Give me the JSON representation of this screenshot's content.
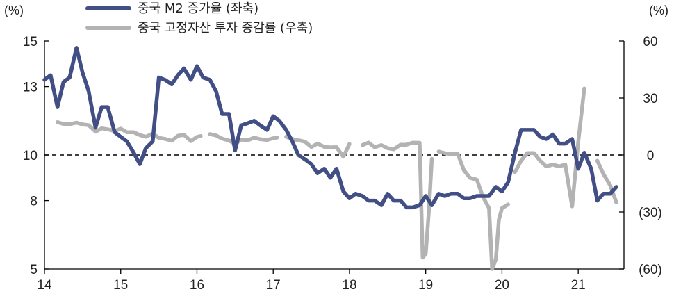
{
  "chart_data": {
    "type": "line",
    "title": "",
    "left_axis": {
      "unit_label": "(%)",
      "ylim": [
        5,
        15
      ],
      "ticks": [
        5,
        8,
        10,
        13,
        15
      ]
    },
    "right_axis": {
      "unit_label": "(%)",
      "ylim": [
        -60,
        60
      ],
      "ticks": [
        -60,
        -30,
        0,
        30,
        60
      ],
      "tick_labels": [
        "(60)",
        "(30)",
        "0",
        "30",
        "60"
      ]
    },
    "x_axis": {
      "start": 14,
      "end": 21.6,
      "ticks": [
        14,
        15,
        16,
        17,
        18,
        19,
        20,
        21
      ],
      "tick_labels": [
        "14",
        "15",
        "16",
        "17",
        "18",
        "19",
        "20",
        "21"
      ]
    },
    "reference_line": {
      "axis": "left",
      "value": 10,
      "style": "dashed"
    },
    "legend": {
      "placement": "top-left"
    },
    "series": [
      {
        "name": "중국 M2 증가율 (좌축)",
        "axis": "left",
        "color": "#414f85",
        "points": [
          [
            14.0,
            13.3
          ],
          [
            14.08,
            13.5
          ],
          [
            14.17,
            12.1
          ],
          [
            14.25,
            13.2
          ],
          [
            14.33,
            13.4
          ],
          [
            14.42,
            14.7
          ],
          [
            14.5,
            13.6
          ],
          [
            14.58,
            12.8
          ],
          [
            14.67,
            11.2
          ],
          [
            14.75,
            12.1
          ],
          [
            14.83,
            12.1
          ],
          [
            14.92,
            11.0
          ],
          [
            15.0,
            10.8
          ],
          [
            15.08,
            10.6
          ],
          [
            15.17,
            10.1
          ],
          [
            15.25,
            9.6
          ],
          [
            15.33,
            10.3
          ],
          [
            15.42,
            10.6
          ],
          [
            15.5,
            13.4
          ],
          [
            15.58,
            13.3
          ],
          [
            15.67,
            13.1
          ],
          [
            15.75,
            13.5
          ],
          [
            15.83,
            13.8
          ],
          [
            15.92,
            13.3
          ],
          [
            16.0,
            13.9
          ],
          [
            16.08,
            13.4
          ],
          [
            16.17,
            13.3
          ],
          [
            16.25,
            12.8
          ],
          [
            16.33,
            11.8
          ],
          [
            16.42,
            11.8
          ],
          [
            16.5,
            10.2
          ],
          [
            16.58,
            11.3
          ],
          [
            16.67,
            11.4
          ],
          [
            16.75,
            11.5
          ],
          [
            16.83,
            11.3
          ],
          [
            16.92,
            11.1
          ],
          [
            17.0,
            11.7
          ],
          [
            17.08,
            11.5
          ],
          [
            17.17,
            11.1
          ],
          [
            17.25,
            10.6
          ],
          [
            17.33,
            10.0
          ],
          [
            17.42,
            9.8
          ],
          [
            17.5,
            9.6
          ],
          [
            17.58,
            9.2
          ],
          [
            17.67,
            9.4
          ],
          [
            17.75,
            9.0
          ],
          [
            17.83,
            9.4
          ],
          [
            17.92,
            8.4
          ],
          [
            18.0,
            8.1
          ],
          [
            18.08,
            8.3
          ],
          [
            18.17,
            8.2
          ],
          [
            18.25,
            8.0
          ],
          [
            18.33,
            8.0
          ],
          [
            18.42,
            7.8
          ],
          [
            18.5,
            8.3
          ],
          [
            18.58,
            8.0
          ],
          [
            18.67,
            8.0
          ],
          [
            18.75,
            7.7
          ],
          [
            18.83,
            7.7
          ],
          [
            18.92,
            7.8
          ],
          [
            19.0,
            8.2
          ],
          [
            19.08,
            7.8
          ],
          [
            19.17,
            8.3
          ],
          [
            19.25,
            8.2
          ],
          [
            19.33,
            8.3
          ],
          [
            19.42,
            8.3
          ],
          [
            19.5,
            8.1
          ],
          [
            19.58,
            8.1
          ],
          [
            19.67,
            8.2
          ],
          [
            19.75,
            8.2
          ],
          [
            19.83,
            8.2
          ],
          [
            19.92,
            8.6
          ],
          [
            20.0,
            8.4
          ],
          [
            20.08,
            8.8
          ],
          [
            20.17,
            10.1
          ],
          [
            20.25,
            11.1
          ],
          [
            20.33,
            11.1
          ],
          [
            20.42,
            11.1
          ],
          [
            20.5,
            10.8
          ],
          [
            20.58,
            10.7
          ],
          [
            20.67,
            10.9
          ],
          [
            20.75,
            10.5
          ],
          [
            20.83,
            10.5
          ],
          [
            20.92,
            10.7
          ],
          [
            21.0,
            9.4
          ],
          [
            21.08,
            10.1
          ],
          [
            21.17,
            9.4
          ],
          [
            21.25,
            8.0
          ],
          [
            21.33,
            8.3
          ],
          [
            21.42,
            8.3
          ],
          [
            21.5,
            8.6
          ]
        ]
      },
      {
        "name": "중국 고정자산 투자 증감률 (우축)",
        "axis": "right",
        "color": "#b3b3b3",
        "segments": [
          [
            [
              14.17,
              17.3
            ],
            [
              14.25,
              16.3
            ],
            [
              14.33,
              16.2
            ],
            [
              14.42,
              17.0
            ],
            [
              14.5,
              16.1
            ],
            [
              14.58,
              15.7
            ],
            [
              14.67,
              12.3
            ],
            [
              14.75,
              14.0
            ],
            [
              14.83,
              13.5
            ],
            [
              14.92,
              12.6
            ],
            [
              15.0,
              13.9
            ],
            [
              15.08,
              12.0
            ],
            [
              15.17,
              12.0
            ],
            [
              15.25,
              10.5
            ],
            [
              15.33,
              9.6
            ],
            [
              15.42,
              11.3
            ],
            [
              15.5,
              9.0
            ],
            [
              15.58,
              8.5
            ],
            [
              15.67,
              7.5
            ],
            [
              15.75,
              10.1
            ],
            [
              15.83,
              10.6
            ],
            [
              15.92,
              7.3
            ],
            [
              16.0,
              9.5
            ],
            [
              16.05,
              10.0
            ]
          ],
          [
            [
              16.17,
              11.0
            ],
            [
              16.25,
              10.3
            ],
            [
              16.33,
              8.6
            ],
            [
              16.42,
              7.6
            ],
            [
              16.5,
              5.8
            ],
            [
              16.58,
              8.1
            ],
            [
              16.67,
              7.8
            ],
            [
              16.75,
              9.1
            ],
            [
              16.83,
              8.3
            ],
            [
              16.92,
              7.9
            ],
            [
              17.0,
              8.8
            ],
            [
              17.05,
              9.2
            ]
          ],
          [
            [
              17.17,
              9.6
            ],
            [
              17.25,
              8.4
            ],
            [
              17.33,
              7.8
            ],
            [
              17.42,
              6.9
            ],
            [
              17.5,
              4.2
            ],
            [
              17.58,
              6.0
            ],
            [
              17.67,
              4.3
            ],
            [
              17.75,
              4.0
            ],
            [
              17.83,
              4.1
            ],
            [
              17.92,
              -0.9
            ],
            [
              18.0,
              5.8
            ]
          ],
          [
            [
              18.17,
              5.2
            ],
            [
              18.25,
              6.5
            ],
            [
              18.33,
              4.1
            ],
            [
              18.42,
              5.2
            ],
            [
              18.5,
              3.6
            ],
            [
              18.58,
              3.0
            ],
            [
              18.67,
              5.4
            ],
            [
              18.75,
              5.4
            ],
            [
              18.83,
              6.5
            ],
            [
              18.92,
              6.4
            ],
            [
              18.96,
              -54.0
            ],
            [
              19.0,
              -52.0
            ],
            [
              19.04,
              -30.0
            ],
            [
              19.08,
              -2.0
            ]
          ],
          [
            [
              19.17,
              1.8
            ],
            [
              19.25,
              1.0
            ],
            [
              19.33,
              0.4
            ],
            [
              19.42,
              0.6
            ],
            [
              19.5,
              -8.0
            ],
            [
              19.58,
              -12.0
            ],
            [
              19.67,
              -13.0
            ],
            [
              19.75,
              -22.0
            ],
            [
              19.83,
              -28.0
            ],
            [
              19.87,
              -60.0
            ],
            [
              19.92,
              -55.0
            ],
            [
              19.96,
              -34.0
            ],
            [
              20.0,
              -28.0
            ],
            [
              20.08,
              -26.0
            ]
          ],
          [
            [
              20.17,
              -9.0
            ],
            [
              20.25,
              -3.0
            ],
            [
              20.33,
              1.0
            ],
            [
              20.42,
              1.0
            ],
            [
              20.5,
              -3.0
            ],
            [
              20.58,
              -6.0
            ],
            [
              20.67,
              -5.0
            ],
            [
              20.75,
              -6.0
            ],
            [
              20.83,
              -5.0
            ],
            [
              20.92,
              -27.0
            ],
            [
              21.0,
              7.0
            ],
            [
              21.08,
              35.0
            ]
          ],
          [
            [
              21.25,
              -3.0
            ],
            [
              21.33,
              -10.0
            ],
            [
              21.42,
              -16.0
            ],
            [
              21.5,
              -25.0
            ]
          ]
        ]
      }
    ]
  }
}
